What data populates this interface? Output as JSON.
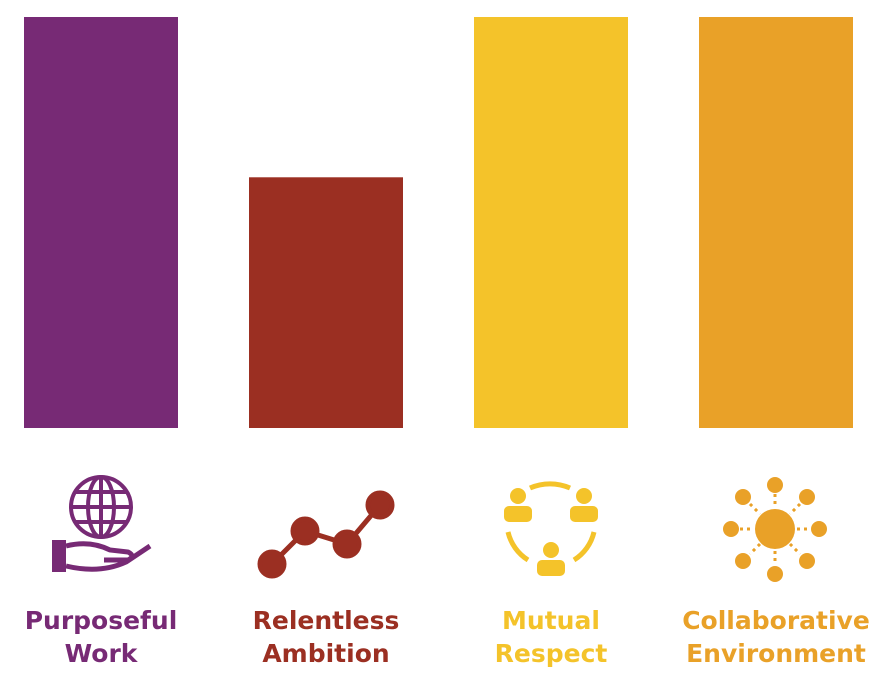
{
  "chart_data": {
    "type": "bar",
    "categories": [
      "Purposeful Work",
      "Relentless Ambition",
      "Mutual Respect",
      "Collaborative Environment"
    ],
    "values": [
      100,
      61,
      100,
      100
    ],
    "colors": [
      "#772a75",
      "#9b2f22",
      "#f4c32a",
      "#e9a128"
    ]
  }
}
